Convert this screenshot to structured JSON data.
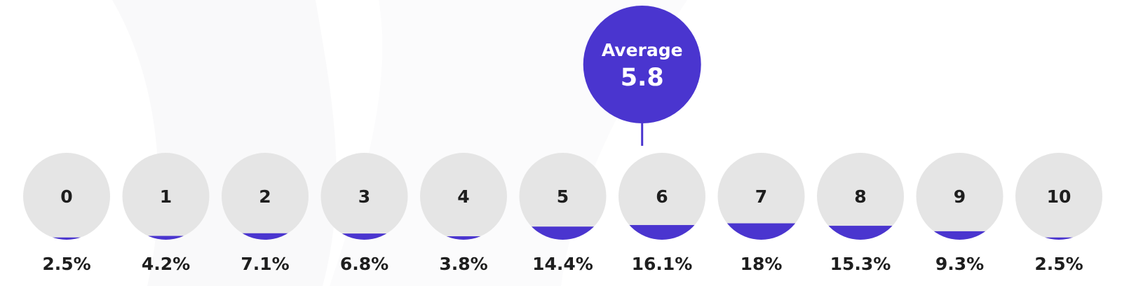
{
  "colors": {
    "accent": "#4a35cf",
    "bubble": "#e5e5e5",
    "text": "#1e1e1e",
    "background": "#ffffff"
  },
  "average": {
    "title": "Average",
    "value": "5.8",
    "position": 5.8
  },
  "chart_data": {
    "type": "bar",
    "categories": [
      "0",
      "1",
      "2",
      "3",
      "4",
      "5",
      "6",
      "7",
      "8",
      "9",
      "10"
    ],
    "values": [
      2.5,
      4.2,
      7.1,
      6.8,
      3.8,
      14.4,
      16.1,
      18,
      15.3,
      9.3,
      2.5
    ],
    "labels": [
      "2.5%",
      "4.2%",
      "7.1%",
      "6.8%",
      "3.8%",
      "14.4%",
      "16.1%",
      "18%",
      "15.3%",
      "9.3%",
      "2.5%"
    ],
    "title": "",
    "xlabel": "",
    "ylabel": "",
    "ylim": [
      0,
      100
    ]
  }
}
